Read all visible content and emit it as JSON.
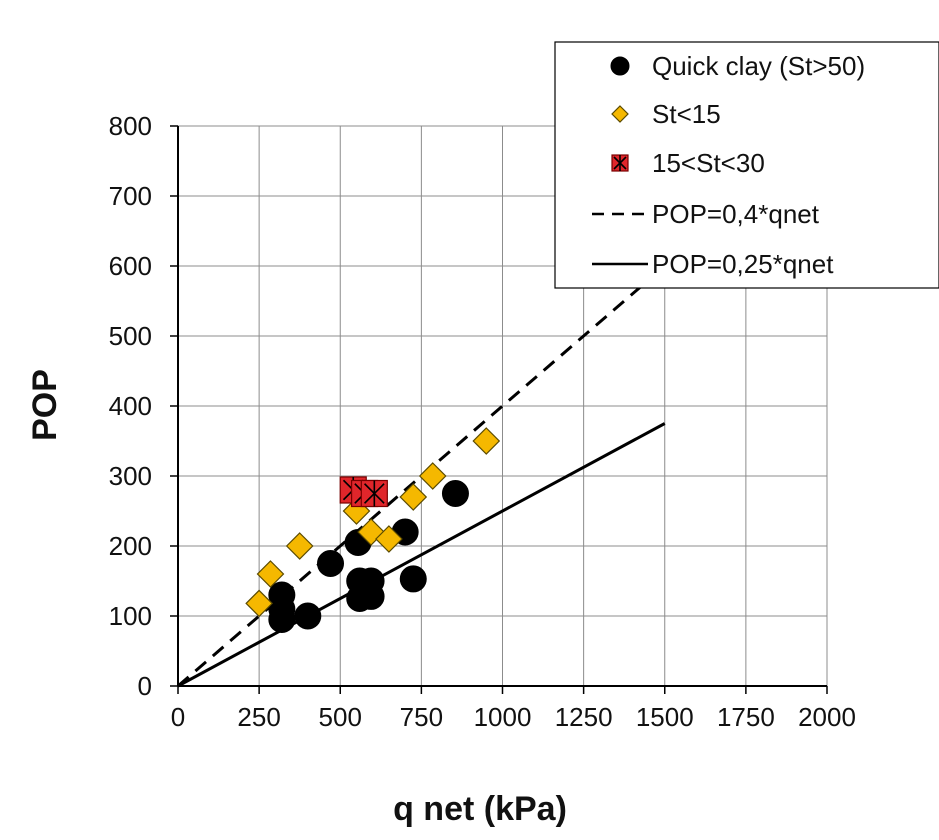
{
  "chart_data": {
    "type": "scatter",
    "title": "",
    "xlabel": "q net (kPa)",
    "ylabel": "POP",
    "xlim": [
      0,
      2000
    ],
    "ylim": [
      0,
      800
    ],
    "xticks": [
      0,
      250,
      500,
      750,
      1000,
      1250,
      1500,
      1750,
      2000
    ],
    "yticks": [
      0,
      100,
      200,
      300,
      400,
      500,
      600,
      700,
      800
    ],
    "grid": true,
    "legend_position": "top-right",
    "series": [
      {
        "name": "Quick clay (St>50)",
        "kind": "scatter",
        "marker": "circle",
        "color": "#000000",
        "points": [
          [
            320,
            130
          ],
          [
            320,
            110
          ],
          [
            320,
            95
          ],
          [
            400,
            100
          ],
          [
            470,
            175
          ],
          [
            555,
            205
          ],
          [
            560,
            150
          ],
          [
            560,
            125
          ],
          [
            595,
            150
          ],
          [
            595,
            128
          ],
          [
            700,
            220
          ],
          [
            725,
            153
          ],
          [
            855,
            275
          ]
        ]
      },
      {
        "name": "St<15",
        "kind": "scatter",
        "marker": "diamond",
        "color": "#F5B800",
        "points": [
          [
            250,
            118
          ],
          [
            285,
            160
          ],
          [
            375,
            200
          ],
          [
            550,
            250
          ],
          [
            595,
            220
          ],
          [
            650,
            210
          ],
          [
            725,
            270
          ],
          [
            785,
            300
          ],
          [
            950,
            350
          ]
        ]
      },
      {
        "name": "15<St<30",
        "kind": "scatter",
        "marker": "square-x",
        "color": "#E0262B",
        "points": [
          [
            540,
            280
          ],
          [
            575,
            275
          ],
          [
            605,
            275
          ]
        ]
      },
      {
        "name": "POP=0,4*qnet",
        "kind": "line",
        "style": "dashed",
        "color": "#000000",
        "points": [
          [
            0,
            0
          ],
          [
            1500,
            600
          ]
        ]
      },
      {
        "name": "POP=0,25*qnet",
        "kind": "line",
        "style": "solid",
        "color": "#000000",
        "points": [
          [
            0,
            0
          ],
          [
            1500,
            375
          ]
        ]
      }
    ]
  }
}
